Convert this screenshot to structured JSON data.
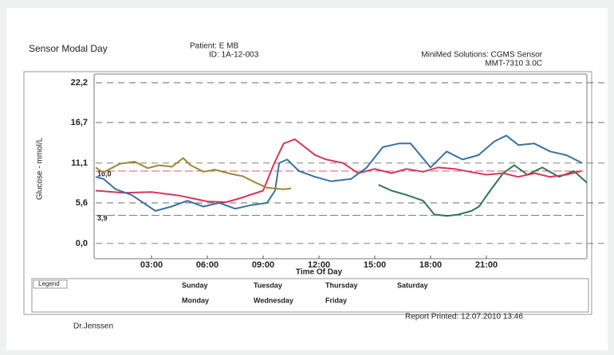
{
  "report": {
    "title": "Sensor Modal Day",
    "patient": "Patient: E MB",
    "id": "ID: 1A-12-003",
    "system": "MiniMed Solutions: CGMS Sensor",
    "model": "MMT-7310 3.0C",
    "doctor": "Dr.Jenssen",
    "printed": "Report Printed: 12.07.2010  13:46"
  },
  "chart_data": {
    "type": "line",
    "y_label": "Glucose - mmol/L",
    "x_label": "Time Of Day",
    "legend_title": "Legend",
    "xlim": [
      0,
      26.4
    ],
    "ylim": [
      -2.1,
      23.4
    ],
    "xticks": [
      {
        "value": 3,
        "label": "03:00"
      },
      {
        "value": 6,
        "label": "06:00"
      },
      {
        "value": 9,
        "label": "09:00"
      },
      {
        "value": 12,
        "label": "12:00"
      },
      {
        "value": 15,
        "label": "15:00"
      },
      {
        "value": 18,
        "label": "18:00"
      },
      {
        "value": 21,
        "label": "21:00"
      }
    ],
    "yticks": [
      {
        "value": 22.2,
        "label": "22,2"
      },
      {
        "value": 16.7,
        "label": "16,7"
      },
      {
        "value": 11.1,
        "label": "11,1"
      },
      {
        "value": 5.6,
        "label": "5,6"
      },
      {
        "value": 0.0,
        "label": "0,0"
      }
    ],
    "grid": true,
    "thresholds": [
      {
        "value": 10.0,
        "label": "10,0",
        "color": "#d0405a"
      },
      {
        "value": 3.9,
        "label": "3,9",
        "color": "#4a4a9a"
      }
    ],
    "series": [
      {
        "name": "Sunday",
        "color": "#111111",
        "x": [],
        "values": []
      },
      {
        "name": "Monday",
        "color": "#2a3a8a",
        "x": [],
        "values": []
      },
      {
        "name": "Tuesday",
        "color": "#e0203a",
        "x": [],
        "values": []
      },
      {
        "name": "Wednesday",
        "color": "#2e7a4e",
        "x": [
          15.2,
          15.9,
          16.7,
          17.6,
          18.2,
          18.9,
          19.5,
          20.2,
          20.6,
          21.2,
          21.9,
          22.5,
          23.2,
          24.0,
          24.9,
          25.7,
          26.4
        ],
        "values": [
          8.1,
          7.3,
          6.7,
          5.9,
          4.0,
          3.8,
          4.0,
          4.5,
          5.1,
          7.3,
          9.7,
          10.8,
          9.5,
          10.5,
          9.2,
          10.0,
          8.4
        ]
      },
      {
        "name": "Thursday",
        "color": "#d6365e",
        "x": [
          0,
          1.5,
          3,
          4.5,
          6,
          7,
          7.7,
          9,
          9.6,
          10.1,
          10.7,
          11.1,
          11.8,
          12.4,
          13.3,
          14.1,
          15,
          15.9,
          16.7,
          17.6,
          18.4,
          19.3,
          20.1,
          21,
          21.9,
          22.7,
          23.6,
          24.4,
          25.3,
          26.1
        ],
        "values": [
          7.3,
          7.0,
          7.1,
          6.6,
          5.8,
          5.7,
          6.2,
          7.3,
          11.1,
          13.8,
          14.4,
          13.6,
          12.2,
          11.6,
          11.1,
          9.7,
          10.3,
          9.7,
          10.3,
          9.9,
          10.5,
          10.3,
          9.9,
          9.5,
          9.7,
          9.2,
          9.7,
          9.2,
          9.5,
          10.0
        ]
      },
      {
        "name": "Friday",
        "color": "#3a72a0",
        "x": [
          0,
          0.43,
          1.07,
          1.93,
          2.57,
          3.21,
          4.07,
          4.93,
          5.79,
          6.64,
          7.5,
          8.36,
          9.21,
          9.64,
          9.86,
          10.29,
          10.93,
          11.79,
          12.64,
          13.72,
          14.57,
          15.43,
          16.29,
          16.93,
          18.0,
          18.86,
          19.72,
          20.57,
          21.43,
          22.07,
          22.72,
          23.57,
          24.43,
          25.29,
          26.15
        ],
        "values": [
          9.2,
          8.9,
          7.5,
          6.7,
          5.6,
          4.5,
          5.1,
          5.9,
          5.1,
          5.6,
          4.8,
          5.3,
          5.6,
          7.3,
          11.1,
          11.6,
          10.0,
          9.2,
          8.6,
          8.9,
          10.5,
          13.3,
          13.8,
          13.8,
          10.5,
          12.7,
          11.6,
          12.2,
          14.1,
          14.9,
          13.6,
          13.8,
          12.7,
          12.2,
          11.1
        ]
      },
      {
        "name": "Saturday",
        "color": "#9a8a30",
        "x": [
          0,
          0.4,
          1.3,
          2.1,
          2.8,
          3.4,
          4.1,
          4.7,
          5.1,
          5.8,
          6.4,
          7.3,
          7.9,
          8.6,
          9.2,
          9.6,
          10.1,
          10.5
        ],
        "values": [
          10.5,
          9.8,
          11.0,
          11.3,
          10.4,
          10.8,
          10.6,
          11.8,
          10.8,
          9.9,
          10.2,
          9.6,
          9.3,
          8.4,
          7.7,
          7.6,
          7.5,
          7.6
        ]
      }
    ]
  }
}
